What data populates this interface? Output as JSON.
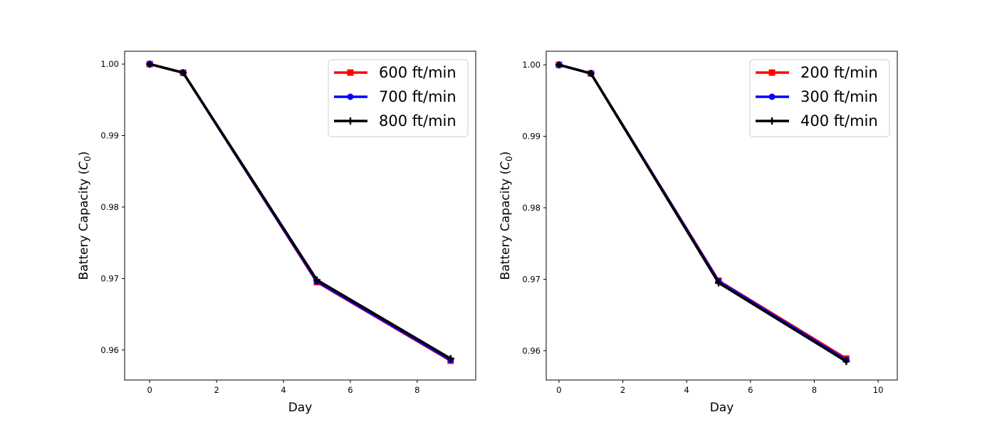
{
  "chart_data": [
    {
      "type": "line",
      "xlabel": "Day",
      "ylabel_prefix": "Battery Capacity (",
      "ylabel_symbol": "C",
      "ylabel_subscript": "0",
      "ylabel_suffix": ")",
      "xlim": [
        -0.75,
        9.75
      ],
      "ylim": [
        0.9558,
        1.0018
      ],
      "xticks": [
        0,
        2,
        4,
        6,
        8
      ],
      "xtick_labels": [
        "0",
        "2",
        "4",
        "6",
        "8"
      ],
      "yticks": [
        0.96,
        0.97,
        0.98,
        0.99,
        1.0
      ],
      "ytick_labels": [
        "0.96",
        "0.97",
        "0.98",
        "0.99",
        "1.00"
      ],
      "legend_position": "top-right",
      "x": [
        0,
        1,
        5,
        9
      ],
      "series": [
        {
          "name": "600 ft/min",
          "color": "#ff0000",
          "marker": "square",
          "values": [
            1.0,
            0.9988,
            0.9695,
            0.9585
          ]
        },
        {
          "name": "700 ft/min",
          "color": "#0000ff",
          "marker": "circle",
          "values": [
            1.0,
            0.9988,
            0.9696,
            0.9586
          ]
        },
        {
          "name": "800 ft/min",
          "color": "#000000",
          "marker": "plus",
          "values": [
            1.0,
            0.9988,
            0.9698,
            0.9588
          ]
        }
      ]
    },
    {
      "type": "line",
      "xlabel": "Day",
      "ylabel_prefix": "Battery Capacity (",
      "ylabel_symbol": "C",
      "ylabel_subscript": "0",
      "ylabel_suffix": ")",
      "xlim": [
        -0.4,
        10.6
      ],
      "ylim": [
        0.9559,
        1.0019
      ],
      "xticks": [
        0,
        2,
        4,
        6,
        8,
        10
      ],
      "xtick_labels": [
        "0",
        "2",
        "4",
        "6",
        "8",
        "10"
      ],
      "yticks": [
        0.96,
        0.97,
        0.98,
        0.99,
        1.0
      ],
      "ytick_labels": [
        "0.96",
        "0.97",
        "0.98",
        "0.99",
        "1.00"
      ],
      "legend_position": "top-right",
      "x": [
        0,
        1,
        5,
        9
      ],
      "series": [
        {
          "name": "200 ft/min",
          "color": "#ff0000",
          "marker": "square",
          "values": [
            1.0,
            0.9988,
            0.9698,
            0.9589
          ]
        },
        {
          "name": "300 ft/min",
          "color": "#0000ff",
          "marker": "circle",
          "values": [
            1.0,
            0.9988,
            0.9697,
            0.9587
          ]
        },
        {
          "name": "400 ft/min",
          "color": "#000000",
          "marker": "plus",
          "values": [
            1.0,
            0.9988,
            0.9695,
            0.9585
          ]
        }
      ]
    }
  ]
}
